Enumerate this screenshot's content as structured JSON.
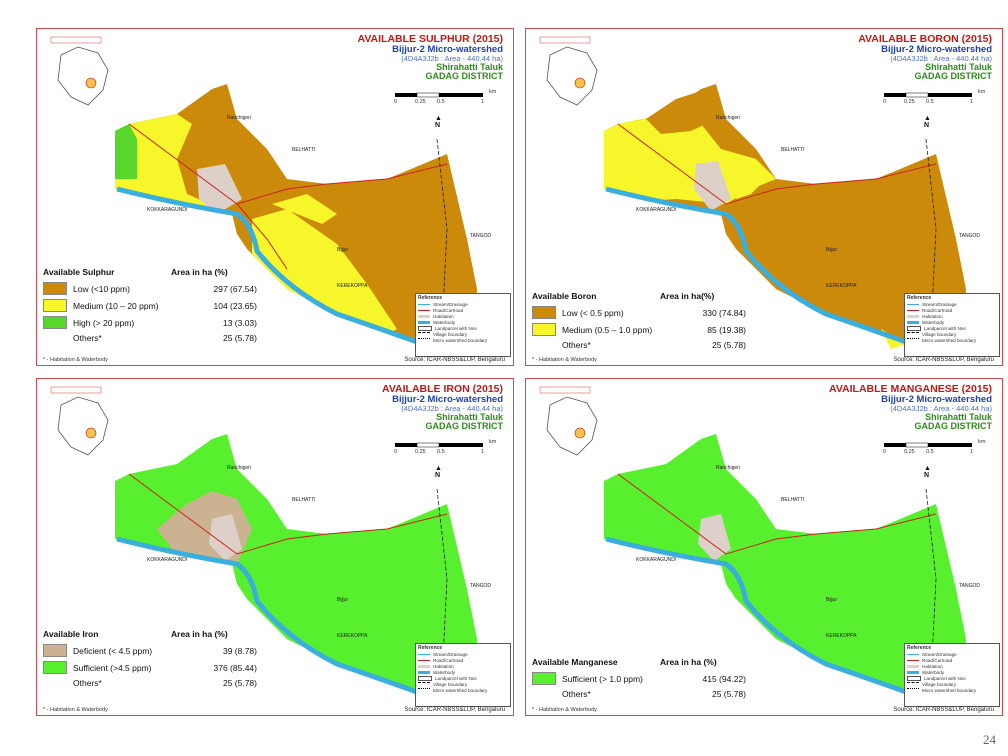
{
  "page_number": "24",
  "colors": {
    "border": "#d44a4a",
    "low": "#cc8a0a",
    "medium": "#f6f62a",
    "high": "#58d62a",
    "deficient": "#cbb392",
    "sufficient": "#58f02e",
    "water": "#3aaedc",
    "road": "#cc2020"
  },
  "common": {
    "watershed": "Bijjur-2 Micro-watershed",
    "code": "(4D4A3J2b : Area - 440.44 ha)",
    "taluk": "Shirahatti Taluk",
    "district": "GADAG DISTRICT",
    "source": "Source: ICAR-NBSS&LUP, Bengaluru",
    "note": "* - Habitation & Waterbody",
    "scale_labels": [
      "0",
      "0.25",
      "0.5",
      "1"
    ],
    "scale_unit": "km",
    "north": "N",
    "villages": {
      "belhatti": "BELHATTI",
      "kokkaragundi": "KOKKARAGUNDI",
      "tangod": "TANGOD",
      "kerekoppa": "KEREKOPPA",
      "bijjur": "Bijjur",
      "ranchigeri": "Ranchigeri",
      "govindappa": "Govindappa"
    },
    "ref": {
      "title": "Reference",
      "items": [
        "Stream/Drainage",
        "Road/Cartroad",
        "Habitation",
        "Waterbody",
        "Landparcel with Nos",
        "Village boundary",
        "Micro watershed boundary"
      ]
    }
  },
  "panels": [
    {
      "title": "AVAILABLE SULPHUR (2015)",
      "legend_title": "Available Sulphur",
      "area_header": "Area in ha (%)",
      "classes": [
        {
          "label": "Low (<10 ppm)",
          "area": "297 (67.54)",
          "color": "#cc8a0a"
        },
        {
          "label": "Medium (10 – 20 ppm)",
          "area": "104 (23.65)",
          "color": "#f6f62a"
        },
        {
          "label": "High (> 20 ppm)",
          "area": "13 (3.03)",
          "color": "#58d62a"
        }
      ],
      "others_label": "Others*",
      "others_area": "25 (5.78)"
    },
    {
      "title": "AVAILABLE BORON (2015)",
      "legend_title": "Available Boron",
      "area_header": "Area in ha(%)",
      "classes": [
        {
          "label": "Low (< 0.5 ppm)",
          "area": "330 (74.84)",
          "color": "#cc8a0a"
        },
        {
          "label": "Medium (0.5 – 1.0 ppm)",
          "area": "85 (19.38)",
          "color": "#f6f62a"
        }
      ],
      "others_label": "Others*",
      "others_area": "25 (5.78)"
    },
    {
      "title": "AVAILABLE IRON (2015)",
      "legend_title": "Available Iron",
      "area_header": "Area in ha (%)",
      "classes": [
        {
          "label": "Deficient (< 4.5 ppm)",
          "area": "39 (8.78)",
          "color": "#cbb392"
        },
        {
          "label": "Sufficient (>4.5 ppm)",
          "area": "376 (85.44)",
          "color": "#58f02e"
        }
      ],
      "others_label": "Others*",
      "others_area": "25 (5.78)"
    },
    {
      "title": "AVAILABLE MANGANESE (2015)",
      "legend_title": "Available Manganese",
      "area_header": "Area in ha (%)",
      "classes": [
        {
          "label": "Sufficient (> 1.0 ppm)",
          "area": "415 (94.22)",
          "color": "#58f02e"
        }
      ],
      "others_label": "Others*",
      "others_area": "25 (5.78)"
    }
  ]
}
